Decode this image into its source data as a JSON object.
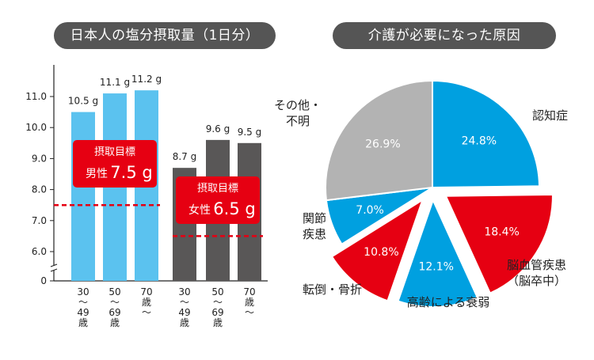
{
  "chart_data": [
    {
      "type": "bar",
      "title": "日本人の塩分摂取量（1日分）",
      "categories": [
        "30〜49歳",
        "50〜69歳",
        "70歳〜",
        "30〜49歳",
        "50〜69歳",
        "70歳〜"
      ],
      "category_lines": [
        [
          "30",
          "〜",
          "49",
          "歳"
        ],
        [
          "50",
          "〜",
          "69",
          "歳"
        ],
        [
          "70",
          "歳",
          "〜"
        ],
        [
          "30",
          "〜",
          "49",
          "歳"
        ],
        [
          "50",
          "〜",
          "69",
          "歳"
        ],
        [
          "70",
          "歳",
          "〜"
        ]
      ],
      "groups": [
        "男性",
        "男性",
        "男性",
        "女性",
        "女性",
        "女性"
      ],
      "values": [
        10.5,
        11.1,
        11.2,
        8.7,
        9.6,
        9.5
      ],
      "value_labels": [
        "10.5 g",
        "11.1 g",
        "11.2 g",
        "8.7 g",
        "9.6 g",
        "9.5 g"
      ],
      "ylim": [
        0,
        11.9
      ],
      "yticks": [
        "0",
        "6.0",
        "7.0",
        "8.0",
        "9.0",
        "10.0",
        "11.0"
      ],
      "ytick_values": [
        0,
        6.0,
        7.0,
        8.0,
        9.0,
        10.0,
        11.0
      ],
      "axis_break": true,
      "colors": {
        "男性": "#5bc2ef",
        "女性": "#595757"
      },
      "targets": [
        {
          "group": "男性",
          "heading": "摂取目標",
          "label": "男性",
          "value": 7.5,
          "value_text": "7.5 g",
          "color": "#e60012"
        },
        {
          "group": "女性",
          "heading": "摂取目標",
          "label": "女性",
          "value": 6.5,
          "value_text": "6.5 g",
          "color": "#e60012"
        }
      ]
    },
    {
      "type": "pie",
      "title": "介護が必要になった原因",
      "slices": [
        {
          "label": "認知症",
          "value": 24.8,
          "text": "24.8%",
          "color": "#00a0e0",
          "exploded": false
        },
        {
          "label": "脳血管疾患（脳卒中）",
          "label_lines": [
            "脳血管疾患",
            "（脳卒中）"
          ],
          "value": 18.4,
          "text": "18.4%",
          "color": "#e60012",
          "exploded": true
        },
        {
          "label": "高齢による衰弱",
          "value": 12.1,
          "text": "12.1%",
          "color": "#00a0e0",
          "exploded": true
        },
        {
          "label": "転倒・骨折",
          "value": 10.8,
          "text": "10.8%",
          "color": "#e60012",
          "exploded": true
        },
        {
          "label": "関節疾患",
          "label_lines": [
            "関節",
            "疾患"
          ],
          "value": 7.0,
          "text": "7.0%",
          "color": "#00a0e0",
          "exploded": false
        },
        {
          "label": "その他・不明",
          "label_lines": [
            "その他・",
            "不明"
          ],
          "value": 26.9,
          "text": "26.9%",
          "color": "#b3b3b3",
          "exploded": false
        }
      ]
    }
  ]
}
